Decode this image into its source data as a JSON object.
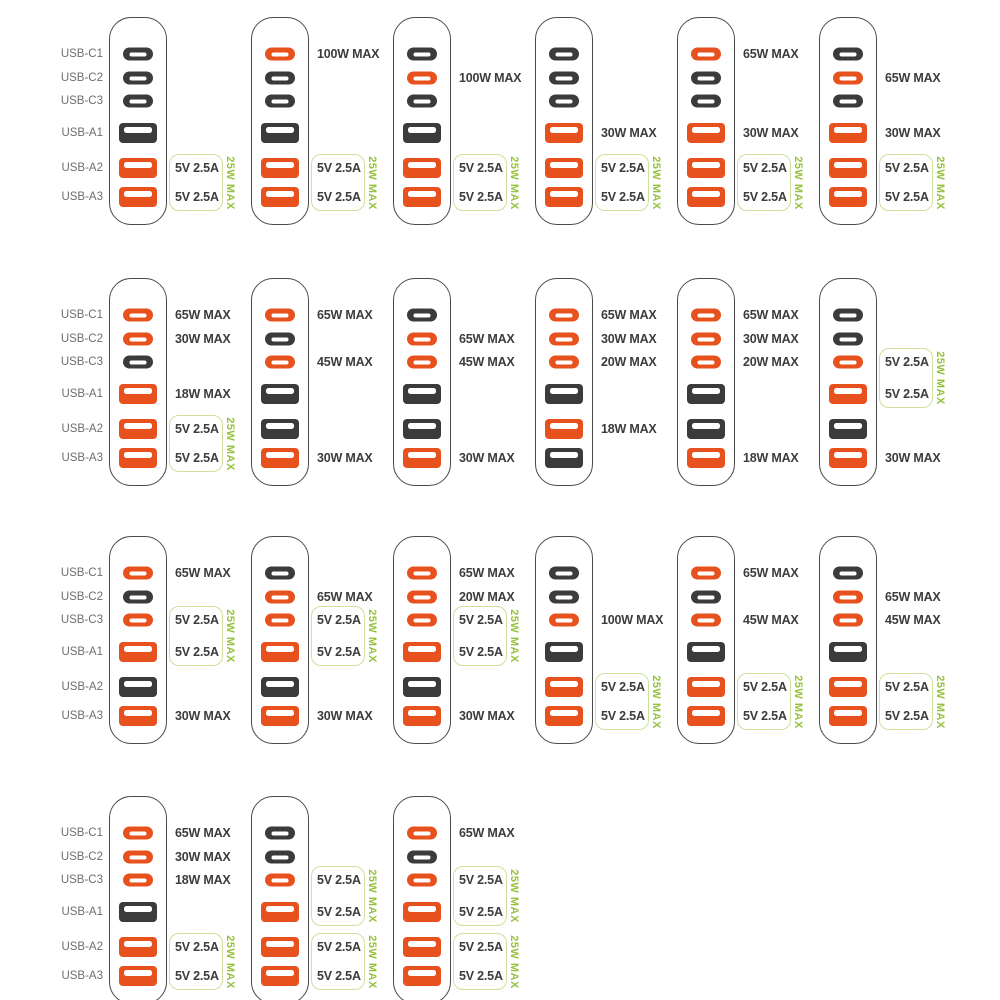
{
  "colors": {
    "orange": "#e7511e",
    "dark": "#3b3b3b",
    "body_outline": "#4a4a4a",
    "label_text": "#3c3c3c",
    "port_name_text": "#6e6e6e",
    "green_text": "#95c23c",
    "green_border": "#cce29c"
  },
  "port_names": [
    "USB-C1",
    "USB-C2",
    "USB-C3",
    "USB-A1",
    "USB-A2",
    "USB-A3"
  ],
  "bracket_label": "25W MAX",
  "rows": [
    {
      "chargers": [
        {
          "ports": [
            {
              "color": "dark",
              "label": null
            },
            {
              "color": "dark",
              "label": null
            },
            {
              "color": "dark",
              "label": null
            },
            {
              "color": "dark",
              "label": null
            },
            {
              "color": "orange",
              "label": "5V 2.5A"
            },
            {
              "color": "orange",
              "label": "5V 2.5A"
            }
          ],
          "groups": [
            {
              "from": 4,
              "to": 5
            }
          ]
        },
        {
          "ports": [
            {
              "color": "orange",
              "label": "100W MAX"
            },
            {
              "color": "dark",
              "label": null
            },
            {
              "color": "dark",
              "label": null
            },
            {
              "color": "dark",
              "label": null
            },
            {
              "color": "orange",
              "label": "5V 2.5A"
            },
            {
              "color": "orange",
              "label": "5V 2.5A"
            }
          ],
          "groups": [
            {
              "from": 4,
              "to": 5
            }
          ]
        },
        {
          "ports": [
            {
              "color": "dark",
              "label": null
            },
            {
              "color": "orange",
              "label": "100W MAX"
            },
            {
              "color": "dark",
              "label": null
            },
            {
              "color": "dark",
              "label": null
            },
            {
              "color": "orange",
              "label": "5V 2.5A"
            },
            {
              "color": "orange",
              "label": "5V 2.5A"
            }
          ],
          "groups": [
            {
              "from": 4,
              "to": 5
            }
          ]
        },
        {
          "ports": [
            {
              "color": "dark",
              "label": null
            },
            {
              "color": "dark",
              "label": null
            },
            {
              "color": "dark",
              "label": null
            },
            {
              "color": "orange",
              "label": "30W MAX"
            },
            {
              "color": "orange",
              "label": "5V 2.5A"
            },
            {
              "color": "orange",
              "label": "5V 2.5A"
            }
          ],
          "groups": [
            {
              "from": 4,
              "to": 5
            }
          ]
        },
        {
          "ports": [
            {
              "color": "orange",
              "label": "65W MAX"
            },
            {
              "color": "dark",
              "label": null
            },
            {
              "color": "dark",
              "label": null
            },
            {
              "color": "orange",
              "label": "30W MAX"
            },
            {
              "color": "orange",
              "label": "5V 2.5A"
            },
            {
              "color": "orange",
              "label": "5V 2.5A"
            }
          ],
          "groups": [
            {
              "from": 4,
              "to": 5
            }
          ]
        },
        {
          "ports": [
            {
              "color": "dark",
              "label": null
            },
            {
              "color": "orange",
              "label": "65W MAX"
            },
            {
              "color": "dark",
              "label": null
            },
            {
              "color": "orange",
              "label": "30W MAX"
            },
            {
              "color": "orange",
              "label": "5V 2.5A"
            },
            {
              "color": "orange",
              "label": "5V 2.5A"
            }
          ],
          "groups": [
            {
              "from": 4,
              "to": 5
            }
          ]
        }
      ]
    },
    {
      "chargers": [
        {
          "ports": [
            {
              "color": "orange",
              "label": "65W MAX"
            },
            {
              "color": "orange",
              "label": "30W MAX"
            },
            {
              "color": "dark",
              "label": null
            },
            {
              "color": "orange",
              "label": "18W MAX"
            },
            {
              "color": "orange",
              "label": "5V 2.5A"
            },
            {
              "color": "orange",
              "label": "5V 2.5A"
            }
          ],
          "groups": [
            {
              "from": 4,
              "to": 5
            }
          ]
        },
        {
          "ports": [
            {
              "color": "orange",
              "label": "65W MAX"
            },
            {
              "color": "dark",
              "label": null
            },
            {
              "color": "orange",
              "label": "45W MAX"
            },
            {
              "color": "dark",
              "label": null
            },
            {
              "color": "dark",
              "label": null
            },
            {
              "color": "orange",
              "label": "30W MAX"
            }
          ],
          "groups": []
        },
        {
          "ports": [
            {
              "color": "dark",
              "label": null
            },
            {
              "color": "orange",
              "label": "65W MAX"
            },
            {
              "color": "orange",
              "label": "45W MAX"
            },
            {
              "color": "dark",
              "label": null
            },
            {
              "color": "dark",
              "label": null
            },
            {
              "color": "orange",
              "label": "30W MAX"
            }
          ],
          "groups": []
        },
        {
          "ports": [
            {
              "color": "orange",
              "label": "65W MAX"
            },
            {
              "color": "orange",
              "label": "30W MAX"
            },
            {
              "color": "orange",
              "label": "20W MAX"
            },
            {
              "color": "dark",
              "label": null
            },
            {
              "color": "orange",
              "label": "18W MAX"
            },
            {
              "color": "dark",
              "label": null
            }
          ],
          "groups": []
        },
        {
          "ports": [
            {
              "color": "orange",
              "label": "65W MAX"
            },
            {
              "color": "orange",
              "label": "30W MAX"
            },
            {
              "color": "orange",
              "label": "20W MAX"
            },
            {
              "color": "dark",
              "label": null
            },
            {
              "color": "dark",
              "label": null
            },
            {
              "color": "orange",
              "label": "18W MAX"
            }
          ],
          "groups": []
        },
        {
          "ports": [
            {
              "color": "dark",
              "label": null
            },
            {
              "color": "dark",
              "label": null
            },
            {
              "color": "orange",
              "label": "5V 2.5A"
            },
            {
              "color": "orange",
              "label": "5V 2.5A"
            },
            {
              "color": "dark",
              "label": null
            },
            {
              "color": "orange",
              "label": "30W MAX"
            }
          ],
          "groups": [
            {
              "from": 2,
              "to": 3
            }
          ]
        }
      ]
    },
    {
      "chargers": [
        {
          "ports": [
            {
              "color": "orange",
              "label": "65W MAX"
            },
            {
              "color": "dark",
              "label": null
            },
            {
              "color": "orange",
              "label": "5V 2.5A"
            },
            {
              "color": "orange",
              "label": "5V 2.5A"
            },
            {
              "color": "dark",
              "label": null
            },
            {
              "color": "orange",
              "label": "30W MAX"
            }
          ],
          "groups": [
            {
              "from": 2,
              "to": 3
            }
          ]
        },
        {
          "ports": [
            {
              "color": "dark",
              "label": null
            },
            {
              "color": "orange",
              "label": "65W MAX"
            },
            {
              "color": "orange",
              "label": "5V 2.5A"
            },
            {
              "color": "orange",
              "label": "5V 2.5A"
            },
            {
              "color": "dark",
              "label": null
            },
            {
              "color": "orange",
              "label": "30W MAX"
            }
          ],
          "groups": [
            {
              "from": 2,
              "to": 3
            }
          ]
        },
        {
          "ports": [
            {
              "color": "orange",
              "label": "65W MAX"
            },
            {
              "color": "orange",
              "label": "20W MAX"
            },
            {
              "color": "orange",
              "label": "5V 2.5A"
            },
            {
              "color": "orange",
              "label": "5V 2.5A"
            },
            {
              "color": "dark",
              "label": null
            },
            {
              "color": "orange",
              "label": "30W MAX"
            }
          ],
          "groups": [
            {
              "from": 2,
              "to": 3
            }
          ]
        },
        {
          "ports": [
            {
              "color": "dark",
              "label": null
            },
            {
              "color": "dark",
              "label": null
            },
            {
              "color": "orange",
              "label": "100W MAX"
            },
            {
              "color": "dark",
              "label": null
            },
            {
              "color": "orange",
              "label": "5V 2.5A"
            },
            {
              "color": "orange",
              "label": "5V 2.5A"
            }
          ],
          "groups": [
            {
              "from": 4,
              "to": 5
            }
          ]
        },
        {
          "ports": [
            {
              "color": "orange",
              "label": "65W MAX"
            },
            {
              "color": "dark",
              "label": null
            },
            {
              "color": "orange",
              "label": "45W MAX"
            },
            {
              "color": "dark",
              "label": null
            },
            {
              "color": "orange",
              "label": "5V 2.5A"
            },
            {
              "color": "orange",
              "label": "5V 2.5A"
            }
          ],
          "groups": [
            {
              "from": 4,
              "to": 5
            }
          ]
        },
        {
          "ports": [
            {
              "color": "dark",
              "label": null
            },
            {
              "color": "orange",
              "label": "65W MAX"
            },
            {
              "color": "orange",
              "label": "45W MAX"
            },
            {
              "color": "dark",
              "label": null
            },
            {
              "color": "orange",
              "label": "5V 2.5A"
            },
            {
              "color": "orange",
              "label": "5V 2.5A"
            }
          ],
          "groups": [
            {
              "from": 4,
              "to": 5
            }
          ]
        }
      ]
    },
    {
      "chargers": [
        {
          "ports": [
            {
              "color": "orange",
              "label": "65W MAX"
            },
            {
              "color": "orange",
              "label": "30W MAX"
            },
            {
              "color": "orange",
              "label": "18W MAX"
            },
            {
              "color": "dark",
              "label": null
            },
            {
              "color": "orange",
              "label": "5V 2.5A"
            },
            {
              "color": "orange",
              "label": "5V 2.5A"
            }
          ],
          "groups": [
            {
              "from": 4,
              "to": 5
            }
          ]
        },
        {
          "ports": [
            {
              "color": "dark",
              "label": null
            },
            {
              "color": "dark",
              "label": null
            },
            {
              "color": "orange",
              "label": "5V 2.5A"
            },
            {
              "color": "orange",
              "label": "5V 2.5A"
            },
            {
              "color": "orange",
              "label": "5V 2.5A"
            },
            {
              "color": "orange",
              "label": "5V 2.5A"
            }
          ],
          "groups": [
            {
              "from": 2,
              "to": 3
            },
            {
              "from": 4,
              "to": 5
            }
          ]
        },
        {
          "ports": [
            {
              "color": "orange",
              "label": "65W MAX"
            },
            {
              "color": "dark",
              "label": null
            },
            {
              "color": "orange",
              "label": "5V 2.5A"
            },
            {
              "color": "orange",
              "label": "5V 2.5A"
            },
            {
              "color": "orange",
              "label": "5V 2.5A"
            },
            {
              "color": "orange",
              "label": "5V 2.5A"
            }
          ],
          "groups": [
            {
              "from": 2,
              "to": 3
            },
            {
              "from": 4,
              "to": 5
            }
          ]
        }
      ]
    }
  ]
}
